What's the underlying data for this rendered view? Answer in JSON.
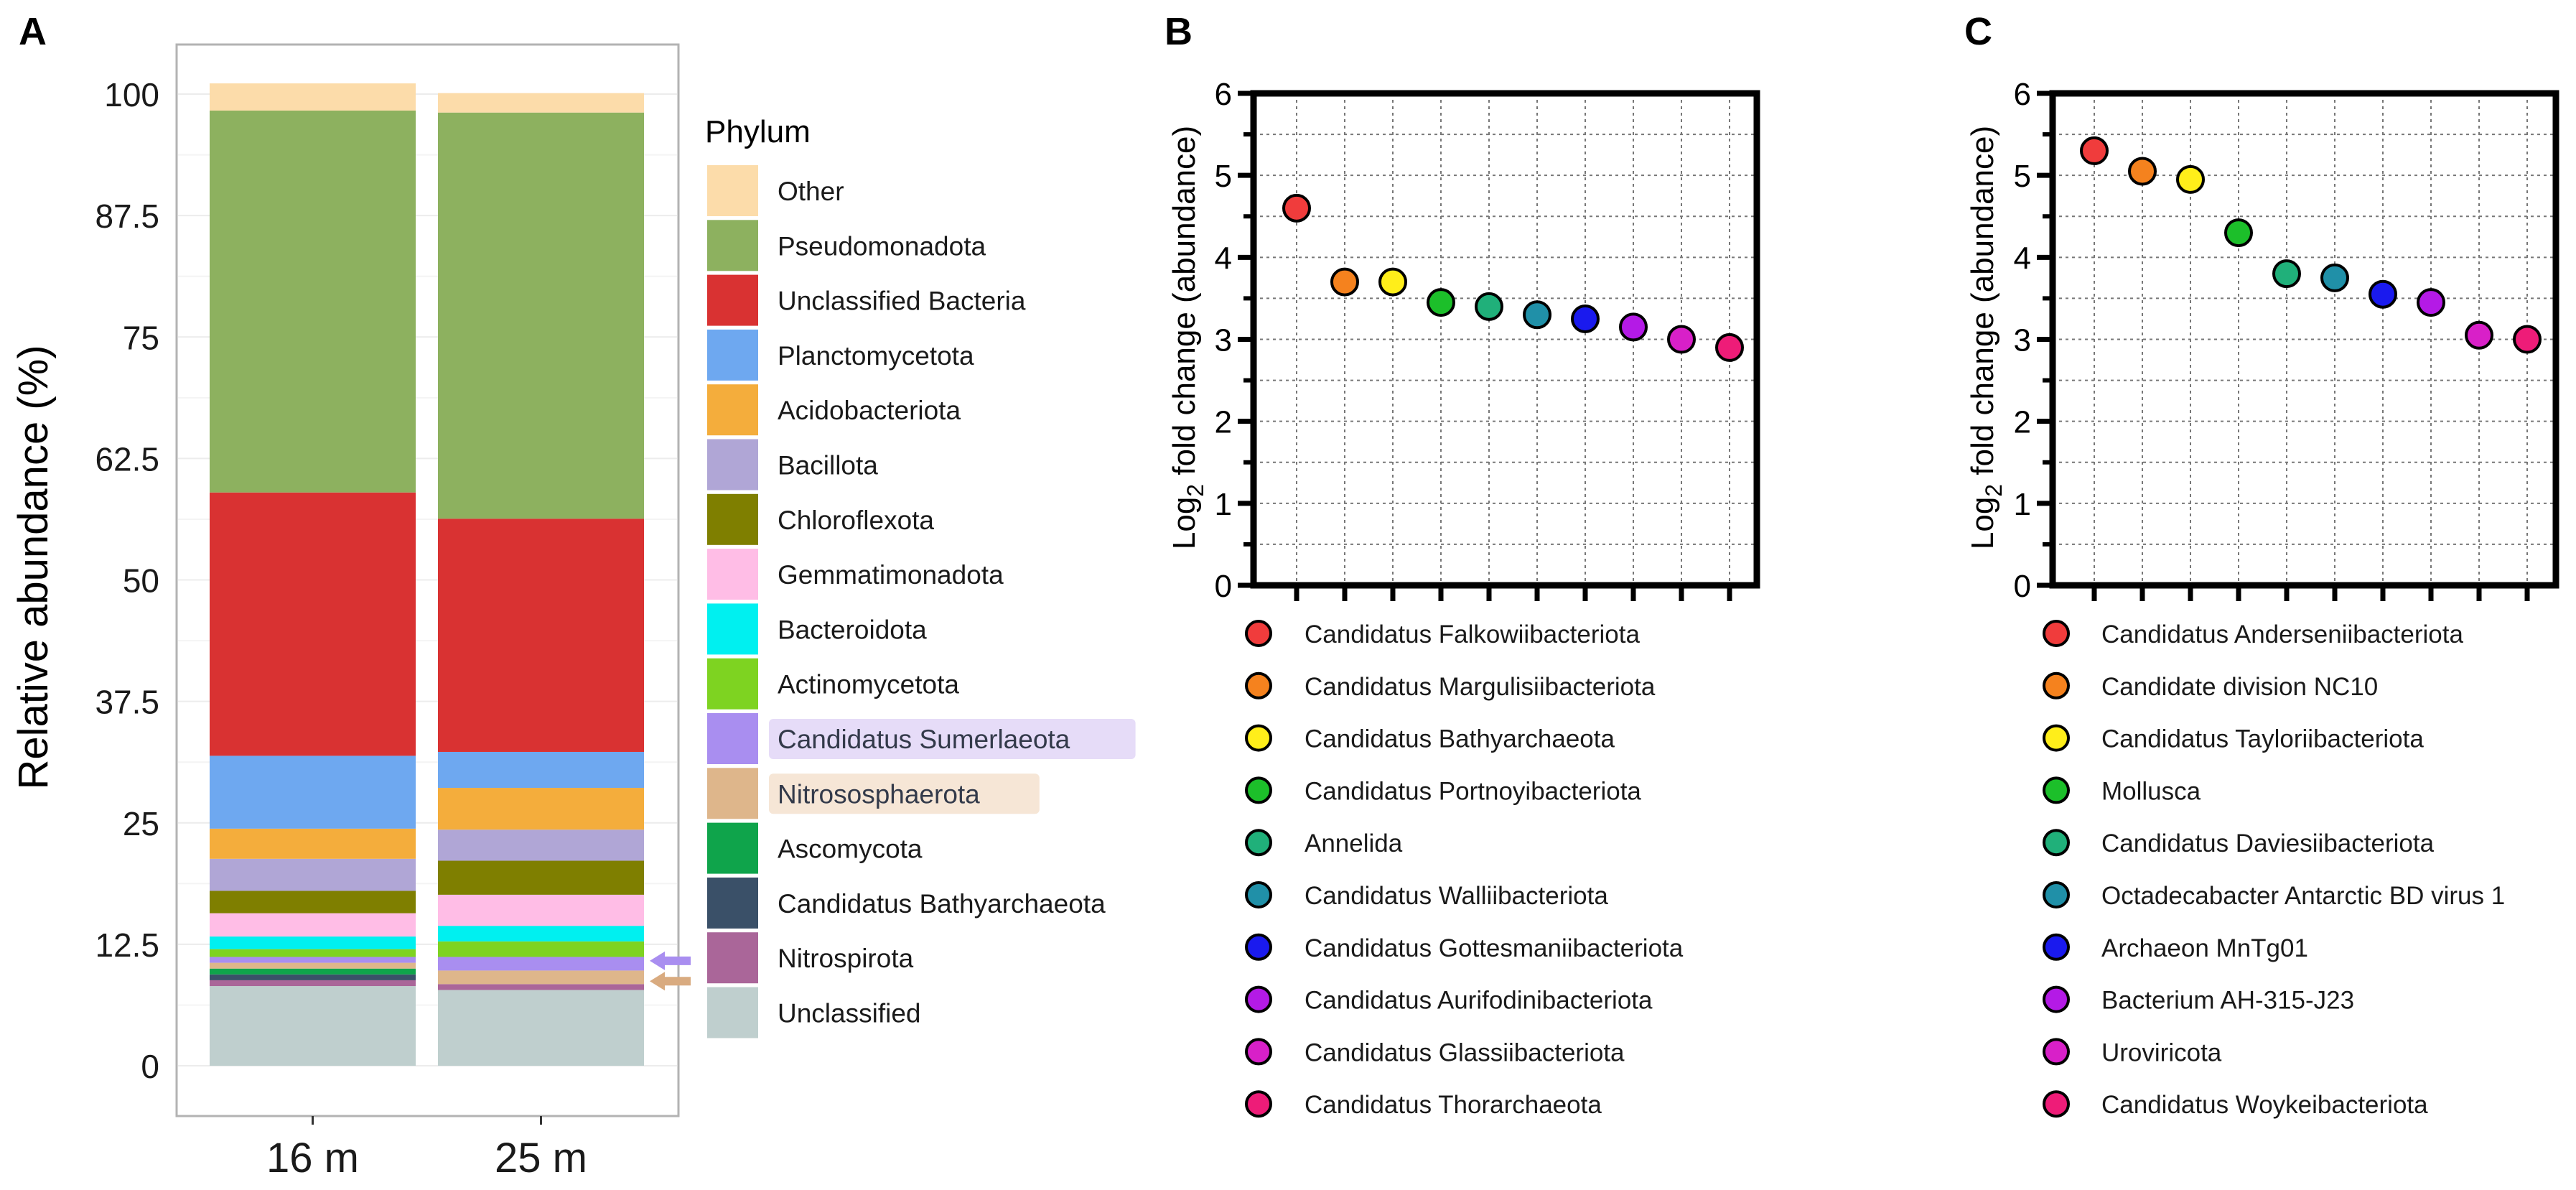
{
  "panels": {
    "a": "A",
    "b": "B",
    "c": "C"
  },
  "chart_data": [
    {
      "type": "bar",
      "stacked": true,
      "title": "",
      "xlabel": "",
      "ylabel": "Relative abundance (%)",
      "ylim": [
        0,
        100
      ],
      "yticks": [
        "0",
        "12.5",
        "25",
        "37.5",
        "50",
        "62.5",
        "75",
        "87.5",
        "100"
      ],
      "categories": [
        "16 m",
        "25 m"
      ],
      "legend_title": "Phylum",
      "series": [
        {
          "name": "Unclassified",
          "color": "#bfcfce",
          "values": [
            8.2,
            7.8
          ]
        },
        {
          "name": "Nitrospirota",
          "color": "#aa6699",
          "values": [
            0.6,
            0.6
          ]
        },
        {
          "name": "Candidatus Bathyarchaeota",
          "color": "#3a5068",
          "values": [
            0.6,
            0.0
          ]
        },
        {
          "name": "Ascomycota",
          "color": "#0fa44b",
          "values": [
            0.6,
            0.0
          ]
        },
        {
          "name": "Nitrososphaerota",
          "color": "#deb68b",
          "values": [
            0.6,
            1.4
          ]
        },
        {
          "name": "Candidatus Sumerlaeota",
          "color": "#a98ef0",
          "values": [
            0.6,
            1.4
          ]
        },
        {
          "name": "Actinomycetota",
          "color": "#7ed321",
          "values": [
            0.8,
            1.6
          ]
        },
        {
          "name": "Bacteroidota",
          "color": "#00f0f0",
          "values": [
            1.3,
            1.6
          ]
        },
        {
          "name": "Gemmatimonadota",
          "color": "#ffbde6",
          "values": [
            2.4,
            3.2
          ]
        },
        {
          "name": "Chloroflexota",
          "color": "#7f7f00",
          "values": [
            2.3,
            3.5
          ]
        },
        {
          "name": "Bacillota",
          "color": "#b0a6d6",
          "values": [
            3.3,
            3.2
          ]
        },
        {
          "name": "Acidobacteriota",
          "color": "#f4ad3c",
          "values": [
            3.1,
            4.3
          ]
        },
        {
          "name": "Planctomycetota",
          "color": "#6ea8f0",
          "values": [
            7.5,
            3.7
          ]
        },
        {
          "name": "Unclassified Bacteria",
          "color": "#d93232",
          "values": [
            27.1,
            24.0
          ]
        },
        {
          "name": "Pseudomonadota",
          "color": "#8db15f",
          "values": [
            39.3,
            41.8
          ]
        },
        {
          "name": "Other",
          "color": "#fcdcaa",
          "values": [
            2.8,
            2.0
          ]
        }
      ],
      "legend_order": [
        "Other",
        "Pseudomonadota",
        "Unclassified Bacteria",
        "Planctomycetota",
        "Acidobacteriota",
        "Bacillota",
        "Chloroflexota",
        "Gemmatimonadota",
        "Bacteroidota",
        "Actinomycetota",
        "Candidatus Sumerlaeota",
        "Nitrososphaerota",
        "Ascomycota",
        "Candidatus Bathyarchaeota",
        "Nitrospirota",
        "Unclassified"
      ],
      "highlighted": [
        "Candidatus Sumerlaeota",
        "Nitrososphaerota"
      ],
      "arrows": [
        {
          "series": "Candidatus Sumerlaeota",
          "value": 10.8,
          "color": "#a98ef0"
        },
        {
          "series": "Nitrososphaerota",
          "value": 8.7,
          "color": "#d9ab80"
        }
      ]
    },
    {
      "type": "scatter",
      "panel": "B",
      "ylabel_main": "Log",
      "ylabel_sub": "2",
      "ylabel_rest": " fold change  (abundance)",
      "ylim": [
        0,
        6
      ],
      "yticks": [
        "0",
        "1",
        "2",
        "3",
        "4",
        "5",
        "6"
      ],
      "grid": true,
      "points": [
        {
          "name": "Candidatus Falkowiibacteriota",
          "value": 4.6,
          "color": "#f03c3c"
        },
        {
          "name": "Candidatus Margulisiibacteriota",
          "value": 3.7,
          "color": "#f5821e"
        },
        {
          "name": "Candidatus Bathyarchaeota",
          "value": 3.7,
          "color": "#ffee1a"
        },
        {
          "name": "Candidatus Portnoyibacteriota",
          "value": 3.45,
          "color": "#1cbf2a"
        },
        {
          "name": "Annelida",
          "value": 3.4,
          "color": "#20b07a"
        },
        {
          "name": "Candidatus Walliibacteriota",
          "value": 3.3,
          "color": "#2090a8"
        },
        {
          "name": "Candidatus Gottesmaniibacteriota",
          "value": 3.25,
          "color": "#1a1aee"
        },
        {
          "name": "Candidatus Aurifodinibacteriota",
          "value": 3.15,
          "color": "#b41ae6"
        },
        {
          "name": "Candidatus Glassiibacteriota",
          "value": 3.0,
          "color": "#d820c8"
        },
        {
          "name": "Candidatus Thorarchaeota",
          "value": 2.9,
          "color": "#ee1c78"
        }
      ]
    },
    {
      "type": "scatter",
      "panel": "C",
      "ylabel_main": "Log",
      "ylabel_sub": "2",
      "ylabel_rest": " fold change  (abundance)",
      "ylim": [
        0,
        6
      ],
      "yticks": [
        "0",
        "1",
        "2",
        "3",
        "4",
        "5",
        "6"
      ],
      "grid": true,
      "points": [
        {
          "name": "Candidatus Anderseniibacteriota",
          "value": 5.3,
          "color": "#f03c3c"
        },
        {
          "name": "Candidate division NC10",
          "value": 5.05,
          "color": "#f5821e"
        },
        {
          "name": "Candidatus Tayloriibacteriota",
          "value": 4.95,
          "color": "#ffee1a"
        },
        {
          "name": "Mollusca",
          "value": 4.3,
          "color": "#1cbf2a"
        },
        {
          "name": "Candidatus Daviesiibacteriota",
          "value": 3.8,
          "color": "#20b07a"
        },
        {
          "name": "Octadecabacter Antarctic BD virus 1",
          "value": 3.75,
          "color": "#2090a8"
        },
        {
          "name": "Archaeon MnTg01",
          "value": 3.55,
          "color": "#1a1aee"
        },
        {
          "name": "Bacterium AH-315-J23",
          "value": 3.45,
          "color": "#b41ae6"
        },
        {
          "name": "Uroviricota",
          "value": 3.05,
          "color": "#d820c8"
        },
        {
          "name": "Candidatus Woykeibacteriota",
          "value": 3.0,
          "color": "#ee1c78"
        }
      ]
    }
  ]
}
